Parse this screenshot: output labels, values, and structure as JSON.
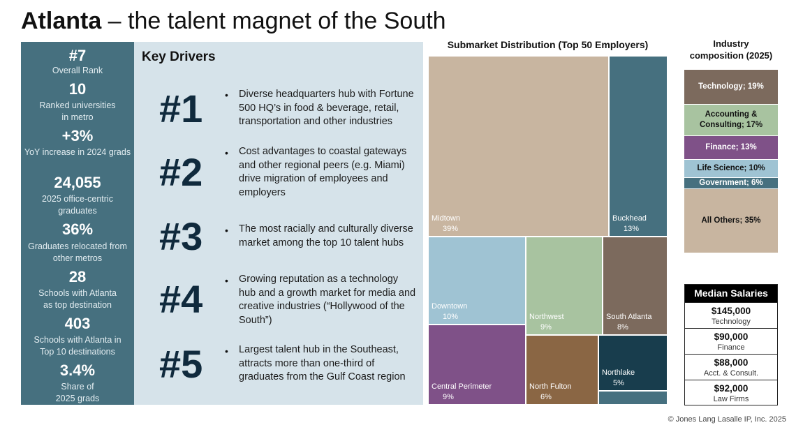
{
  "header": {
    "title_bold": "Atlanta",
    "title_rest": " – the talent magnet of the South"
  },
  "stats": [
    {
      "value": "#7",
      "label": "Overall Rank"
    },
    {
      "value": "10",
      "label": "Ranked universities\nin metro"
    },
    {
      "value": "+3%",
      "label": "YoY increase in 2024 grads"
    },
    {
      "value": "24,055",
      "label": "2025 office-centric\ngraduates"
    },
    {
      "value": "36%",
      "label": "Graduates relocated from\nother metros"
    },
    {
      "value": "28",
      "label": "Schools with Atlanta\nas top destination"
    },
    {
      "value": "403",
      "label": "Schools with Atlanta in\nTop 10 destinations"
    },
    {
      "value": "3.4%",
      "label": "Share of\n2025 grads"
    }
  ],
  "drivers": {
    "title": "Key Drivers",
    "bullet": "•",
    "items": [
      {
        "number": "#1",
        "text": "Diverse headquarters hub with Fortune 500 HQ’s in food & beverage, retail, transportation and other industries"
      },
      {
        "number": "#2",
        "text": "Cost advantages to coastal gateways and other regional peers (e.g. Miami) drive migration of employees and employers"
      },
      {
        "number": "#3",
        "text": "The most racially and culturally diverse market among the top 10 talent hubs"
      },
      {
        "number": "#4",
        "text": "Growing reputation as a technology hub and a growth market for media and creative industries (“Hollywood of the South”)"
      },
      {
        "number": "#5",
        "text": "Largest talent hub in the Southeast, attracts more than one-third of graduates from the Gulf Coast region"
      }
    ]
  },
  "chart_data": [
    {
      "type": "treemap",
      "title": "Submarket Distribution (Top 50 Employers)",
      "unit": "%",
      "items": [
        {
          "name": "Midtown",
          "label": "39%",
          "value": 39,
          "color": "#c8b5a0"
        },
        {
          "name": "Buckhead",
          "label": "13%",
          "value": 13,
          "color": "#46707f"
        },
        {
          "name": "Downtown",
          "label": "10%",
          "value": 10,
          "color": "#9fc3d3"
        },
        {
          "name": "Northwest",
          "label": "9%",
          "value": 9,
          "color": "#a8c3a0"
        },
        {
          "name": "South Atlanta",
          "label": "8%",
          "value": 8,
          "color": "#7c6a5d"
        },
        {
          "name": "Central Perimeter",
          "label": "9%",
          "value": 9,
          "color": "#7f5188"
        },
        {
          "name": "North Fulton",
          "label": "6%",
          "value": 6,
          "color": "#8a6644"
        },
        {
          "name": "Northlake",
          "label": "5%",
          "value": 5,
          "color": "#183d4d"
        },
        {
          "name": "",
          "label": "",
          "value": 1,
          "color": "#46707f"
        }
      ]
    },
    {
      "type": "stacked-bar",
      "title": "Industry\ncomposition (2025)",
      "items": [
        {
          "label": "Technology; 19%",
          "value": 19,
          "color": "#7c6a5d",
          "text_color": "#ffffff"
        },
        {
          "label": "Accounting & Consulting; 17%",
          "value": 17,
          "color": "#a8c3a0",
          "text_color": "#111111"
        },
        {
          "label": "Finance; 13%",
          "value": 13,
          "color": "#7f5188",
          "text_color": "#ffffff"
        },
        {
          "label": "Life Science; 10%",
          "value": 10,
          "color": "#9fc3d3",
          "text_color": "#111111"
        },
        {
          "label": "Government; 6%",
          "value": 6,
          "color": "#46707f",
          "text_color": "#ffffff"
        },
        {
          "label": "All Others; 35%",
          "value": 35,
          "color": "#c8b5a0",
          "text_color": "#111111"
        }
      ]
    }
  ],
  "salaries": {
    "title": "Median Salaries",
    "rows": [
      {
        "value": "$145,000",
        "label": "Technology"
      },
      {
        "value": "$90,000",
        "label": "Finance"
      },
      {
        "value": "$88,000",
        "label": "Acct. & Consult."
      },
      {
        "value": "$92,000",
        "label": "Law Firms"
      }
    ]
  },
  "footer": {
    "copyright": "© Jones Lang Lasalle IP, Inc. 2025"
  }
}
